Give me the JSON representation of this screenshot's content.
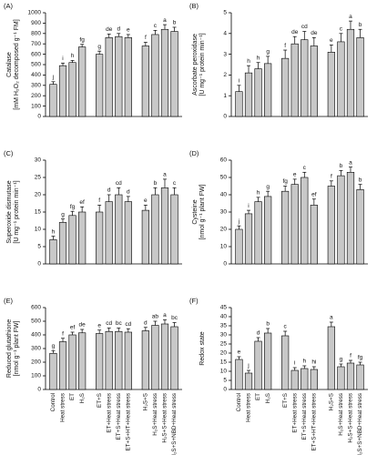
{
  "chart_data": [
    {
      "type": "bar",
      "panel_label": "(A)",
      "ylabel": [
        "Catalase",
        "[mM H₂O₂ decomposed g⁻¹ FM]"
      ],
      "ylim": [
        0,
        1000
      ],
      "yticks": [
        0,
        100,
        200,
        300,
        400,
        500,
        600,
        700,
        800,
        900,
        1000
      ],
      "color": "#c8c8c8",
      "values": [
        310,
        490,
        520,
        670,
        600,
        760,
        770,
        760,
        680,
        790,
        840,
        820
      ],
      "errors": [
        25,
        25,
        20,
        25,
        30,
        35,
        30,
        30,
        35,
        40,
        45,
        40
      ],
      "letters": [
        "j",
        "i",
        "h",
        "fg",
        "g",
        "de",
        "d",
        "e",
        "f",
        "c",
        "a",
        "b"
      ]
    },
    {
      "type": "bar",
      "panel_label": "(B)",
      "ylabel": [
        "Ascorbate peroxidase",
        "[U mg⁻¹ protein min⁻¹]"
      ],
      "ylim": [
        0,
        5
      ],
      "yticks": [
        0,
        1,
        2,
        3,
        4,
        5
      ],
      "color": "#c8c8c8",
      "values": [
        1.2,
        2.1,
        2.3,
        2.55,
        2.8,
        3.5,
        3.7,
        3.4,
        3.1,
        3.6,
        4.2,
        3.8
      ],
      "errors": [
        0.3,
        0.35,
        0.3,
        0.35,
        0.4,
        0.35,
        0.4,
        0.4,
        0.35,
        0.4,
        0.4,
        0.4
      ],
      "letters": [
        "i",
        "h",
        "h",
        "g",
        "f",
        "de",
        "cd",
        "de",
        "e",
        "c",
        "a",
        "b"
      ]
    },
    {
      "type": "bar",
      "panel_label": "(C)",
      "ylabel": [
        "Superoxide dismutase",
        "[U mg⁻¹ protein min⁻¹]"
      ],
      "ylim": [
        0,
        30
      ],
      "yticks": [
        0,
        5,
        10,
        15,
        20,
        25,
        30
      ],
      "color": "#c8c8c8",
      "values": [
        7,
        12,
        14,
        15,
        15,
        18,
        20,
        18,
        15.5,
        20,
        22,
        20
      ],
      "errors": [
        1,
        1,
        1.2,
        1.5,
        2,
        2,
        2,
        1.5,
        1.5,
        2,
        2.5,
        2
      ],
      "letters": [
        "h",
        "g",
        "fg",
        "ef",
        "f",
        "d",
        "cd",
        "d",
        "e",
        "b",
        "a",
        "c"
      ]
    },
    {
      "type": "bar",
      "panel_label": "(D)",
      "ylabel": [
        "Cysteine",
        "[nmol g⁻¹ plant FW]"
      ],
      "ylim": [
        0,
        60
      ],
      "yticks": [
        0,
        10,
        20,
        30,
        40,
        50,
        60
      ],
      "color": "#c8c8c8",
      "values": [
        20,
        29,
        36,
        39,
        42,
        46,
        50,
        34,
        45,
        51,
        53,
        43
      ],
      "errors": [
        2,
        2,
        2.5,
        3,
        3,
        3,
        3,
        3.5,
        3,
        3,
        3,
        3
      ],
      "letters": [
        "j",
        "i",
        "h",
        "g",
        "fg",
        "e",
        "c",
        "ef",
        "f",
        "b",
        "a",
        "b"
      ]
    },
    {
      "type": "bar",
      "panel_label": "(E)",
      "ylabel": [
        "Reduced glutathione",
        "[nmol g⁻¹ plant FW]"
      ],
      "ylim": [
        0,
        600
      ],
      "yticks": [
        0,
        100,
        200,
        300,
        400,
        500,
        600
      ],
      "color": "#c8c8c8",
      "categories": [
        "Control",
        "Heat stress",
        "ET",
        "H₂S",
        "ET+S",
        "ET+Heat stress",
        "ET+S+Heat stress",
        "ET+S+HT+Heat stress",
        "H₂S+S",
        "H₂S+Heat stress",
        "H₂S+S+Heat stress",
        "H₂S+S+NBD+Heat stress"
      ],
      "values": [
        265,
        350,
        400,
        415,
        410,
        425,
        425,
        420,
        430,
        470,
        480,
        460
      ],
      "errors": [
        20,
        25,
        20,
        25,
        25,
        25,
        25,
        25,
        25,
        30,
        30,
        30
      ],
      "letters": [
        "g",
        "f",
        "ef",
        "de",
        "e",
        "cd",
        "bc",
        "cd",
        "d",
        "ab",
        "a",
        "bc"
      ]
    },
    {
      "type": "bar",
      "panel_label": "(F)",
      "ylabel": [
        "Redox state"
      ],
      "ylim": [
        0,
        45
      ],
      "yticks": [
        0,
        5,
        10,
        15,
        20,
        25,
        30,
        35,
        40,
        45
      ],
      "color": "#c8c8c8",
      "categories": [
        "Control",
        "Heat stress",
        "ET",
        "H₂S",
        "ET+S",
        "ET+Heat stress",
        "ET+S+Heat stress",
        "ET+S+HT+Heat stress",
        "H₂S+S",
        "H₂S+Heat stress",
        "H₂S+S+Heat stress",
        "H₂S+S+NBD+Heat stress"
      ],
      "values": [
        16.5,
        9,
        26.5,
        31,
        29.5,
        10.5,
        11.5,
        11,
        34.5,
        12.5,
        14.5,
        13.5
      ],
      "errors": [
        1.5,
        1.5,
        2,
        2.5,
        2.5,
        1.5,
        1.5,
        1.5,
        2.5,
        1.5,
        1.5,
        1.5
      ],
      "letters": [
        "e",
        "j",
        "d",
        "b",
        "c",
        "i",
        "h",
        "hi",
        "a",
        "g",
        "f",
        "fg"
      ]
    }
  ]
}
